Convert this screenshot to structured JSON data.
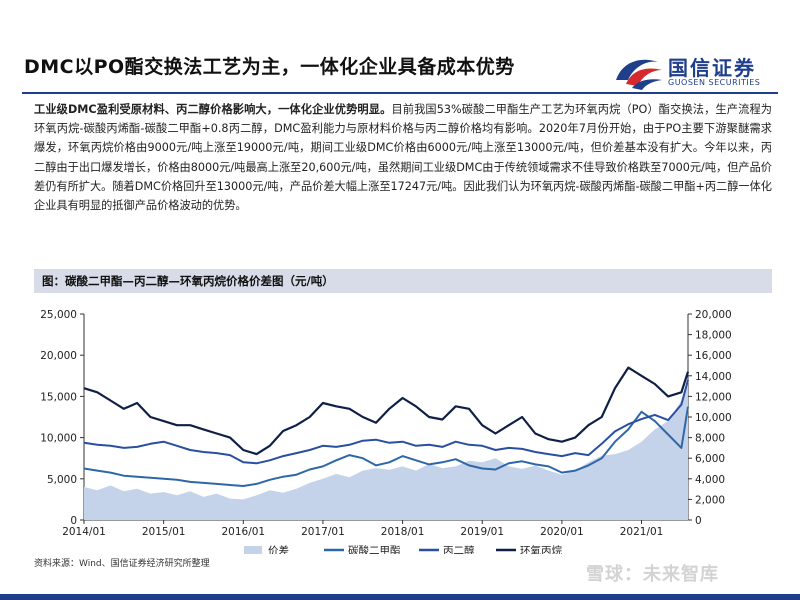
{
  "page": {
    "title": "DMC以PO酯交换法工艺为主，一体化企业具备成本优势",
    "logo": {
      "name": "国信证券",
      "sub": "GUOSEN SECURITIES"
    },
    "body_bold": "工业级DMC盈利受原材料、丙二醇价格影响大，一体化企业优势明显。",
    "body_rest": "目前我国53%碳酸二甲酯生产工艺为环氧丙烷（PO）酯交换法，生产流程为环氧丙烷-碳酸丙烯酯-碳酸二甲酯+0.8丙二醇，DMC盈利能力与原材料价格与丙二醇价格均有影响。2020年7月份开始，由于PO主要下游聚醚需求爆发，环氧丙烷价格由9000元/吨上涨至19000元/吨，期间工业级DMC价格由6000元/吨上涨至13000元/吨，但价差基本没有扩大。今年以来，丙二醇由于出口爆发增长，价格由8000元/吨最高上涨至20,600元/吨，虽然期间工业级DMC由于传统领域需求不佳导致价格跌至7000元/吨，但产品价差仍有所扩大。随着DMC价格回升至13000元/吨，产品价差大幅上涨至17247元/吨。因此我们认为环氧丙烷-碳酸丙烯酯-碳酸二甲酯+丙二醇一体化企业具有明显的抵御产品价格波动的优势。",
    "figure_title": "图：碳酸二甲酯—丙二醇—环氧丙烷价格价差图（元/吨）",
    "source": "资料来源：Wind、国信证券经济研究所整理",
    "watermark": "雪球：未来智库"
  },
  "colors": {
    "brand": "#1f3e8c",
    "spread": "#c5d3ea",
    "dmc": "#2e67a8",
    "pg": "#2a4fa0",
    "po": "#0f1f46"
  },
  "chart_data": {
    "type": "line",
    "x_dates": [
      "2014/01",
      "2014/03",
      "2014/05",
      "2014/07",
      "2014/09",
      "2014/11",
      "2015/01",
      "2015/03",
      "2015/05",
      "2015/07",
      "2015/09",
      "2015/11",
      "2016/01",
      "2016/03",
      "2016/05",
      "2016/07",
      "2016/09",
      "2016/11",
      "2017/01",
      "2017/03",
      "2017/05",
      "2017/07",
      "2017/09",
      "2017/11",
      "2018/01",
      "2018/03",
      "2018/05",
      "2018/07",
      "2018/09",
      "2018/11",
      "2019/01",
      "2019/03",
      "2019/05",
      "2019/07",
      "2019/09",
      "2019/11",
      "2020/01",
      "2020/03",
      "2020/05",
      "2020/07",
      "2020/09",
      "2020/11",
      "2021/01",
      "2021/03",
      "2021/05",
      "2021/07",
      "2021/08"
    ],
    "x_tick_labels": [
      "2014/01",
      "2015/01",
      "2016/01",
      "2017/01",
      "2018/01",
      "2019/01",
      "2020/01",
      "2021/01"
    ],
    "y_left_ticks": [
      "0",
      "5,000",
      "10,000",
      "15,000",
      "20,000",
      "25,000"
    ],
    "y_right_ticks": [
      "0",
      "2,000",
      "4,000",
      "6,000",
      "8,000",
      "10,000",
      "12,000",
      "14,000",
      "16,000",
      "18,000",
      "20,000"
    ],
    "y_left_range": [
      0,
      25000
    ],
    "y_right_range": [
      0,
      20000
    ],
    "legend_position": "bottom",
    "grid": false,
    "series": [
      {
        "name": "价差",
        "type": "area",
        "axis": "left",
        "values": [
          4000,
          3600,
          4200,
          3500,
          3800,
          3200,
          3400,
          3000,
          3500,
          2800,
          3200,
          2600,
          2500,
          3000,
          3600,
          3300,
          3800,
          4500,
          5000,
          5600,
          5200,
          6000,
          6300,
          6100,
          6500,
          6000,
          6800,
          6300,
          6500,
          7200,
          7000,
          7500,
          6500,
          6200,
          6600,
          6000,
          5500,
          6000,
          7000,
          7800,
          8000,
          8500,
          9500,
          11000,
          12000,
          14500,
          17000
        ]
      },
      {
        "name": "碳酸二甲酯",
        "type": "line",
        "axis": "right",
        "values": [
          5000,
          4800,
          4600,
          4300,
          4200,
          4100,
          4000,
          3900,
          3700,
          3600,
          3500,
          3400,
          3300,
          3500,
          3900,
          4200,
          4400,
          4900,
          5200,
          5800,
          6300,
          6000,
          5300,
          5600,
          6200,
          5800,
          5400,
          5600,
          5900,
          5300,
          5000,
          4900,
          5500,
          5700,
          5400,
          5200,
          4600,
          4800,
          5300,
          6000,
          7600,
          8800,
          10500,
          9600,
          8300,
          7000,
          11000
        ]
      },
      {
        "name": "丙二醇",
        "type": "line",
        "axis": "right",
        "values": [
          7500,
          7300,
          7200,
          7000,
          7100,
          7400,
          7600,
          7200,
          6800,
          6600,
          6500,
          6300,
          5600,
          5500,
          5800,
          6200,
          6500,
          6800,
          7200,
          7100,
          7300,
          7700,
          7800,
          7500,
          7600,
          7200,
          7300,
          7100,
          7600,
          7300,
          7200,
          6800,
          7000,
          6900,
          6600,
          6400,
          6200,
          6500,
          6300,
          7400,
          8600,
          9300,
          9800,
          10200,
          9700,
          11200,
          13600
        ]
      },
      {
        "name": "环氧丙烷",
        "type": "line",
        "axis": "left",
        "values": [
          16000,
          15500,
          14500,
          13500,
          14200,
          12500,
          12000,
          11500,
          11500,
          11000,
          10500,
          10000,
          8500,
          8000,
          9000,
          10800,
          11500,
          12500,
          14200,
          13800,
          13500,
          12500,
          11800,
          13500,
          14800,
          13800,
          12500,
          12200,
          13800,
          13500,
          11500,
          10500,
          11500,
          12500,
          10500,
          9800,
          9500,
          10000,
          11500,
          12500,
          16000,
          18500,
          17500,
          16500,
          15000,
          15500,
          18000
        ]
      }
    ]
  }
}
